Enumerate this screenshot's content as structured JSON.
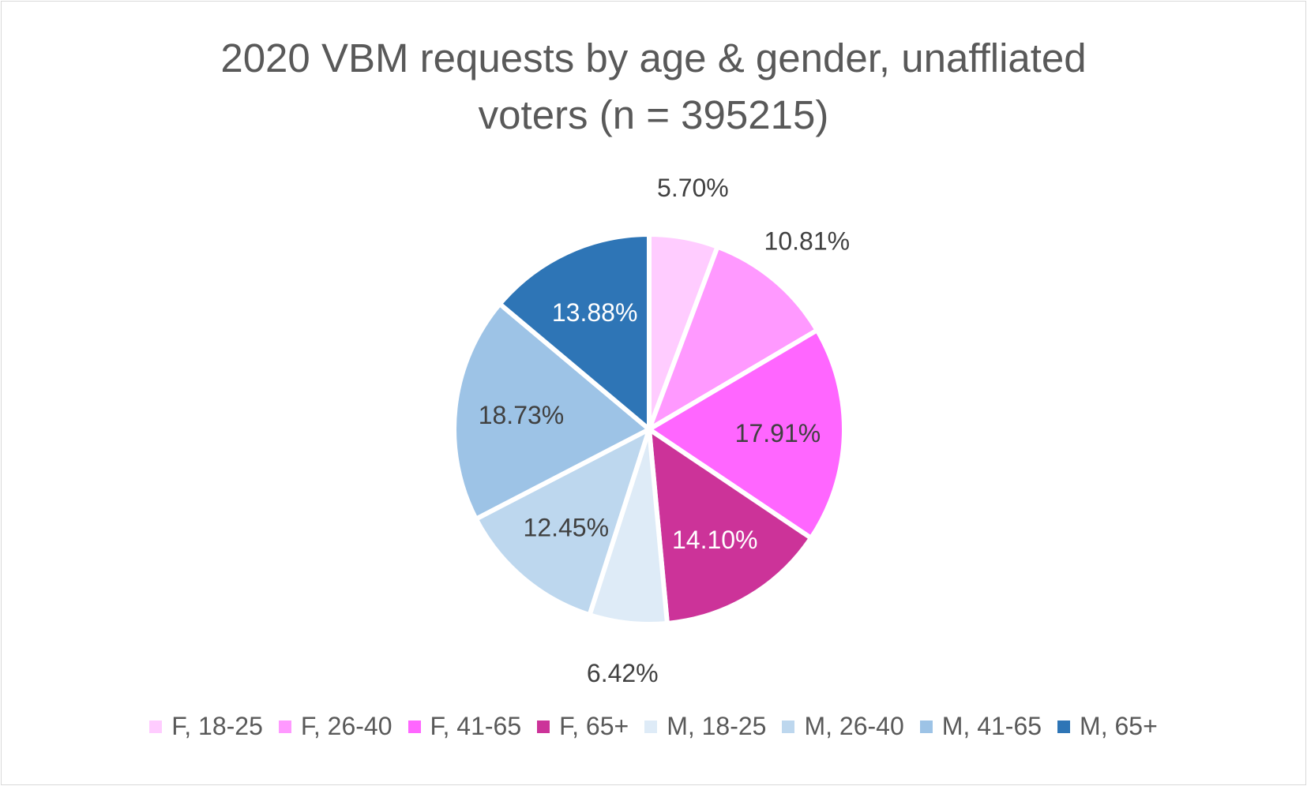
{
  "chart_data": {
    "type": "pie",
    "title_lines": [
      "2020 VBM requests by age & gender, unaffliated",
      "voters (n = 395215)"
    ],
    "slices": [
      {
        "label": "F, 18-25",
        "value": 5.7,
        "display": "5.70%",
        "color": "#ffccff",
        "label_color": "#404040"
      },
      {
        "label": "F, 26-40",
        "value": 10.81,
        "display": "10.81%",
        "color": "#ff99ff",
        "label_color": "#404040"
      },
      {
        "label": "F, 41-65",
        "value": 17.91,
        "display": "17.91%",
        "color": "#ff66ff",
        "label_color": "#404040"
      },
      {
        "label": "F, 65+",
        "value": 14.1,
        "display": "14.10%",
        "color": "#cc3399",
        "label_color": "#ffffff"
      },
      {
        "label": "M, 18-25",
        "value": 6.42,
        "display": "6.42%",
        "color": "#deebf7",
        "label_color": "#404040"
      },
      {
        "label": "M, 26-40",
        "value": 12.45,
        "display": "12.45%",
        "color": "#bdd7ee",
        "label_color": "#404040"
      },
      {
        "label": "M, 41-65",
        "value": 18.73,
        "display": "18.73%",
        "color": "#9dc3e6",
        "label_color": "#404040"
      },
      {
        "label": "M, 65+",
        "value": 13.88,
        "display": "13.88%",
        "color": "#2e75b6",
        "label_color": "#ffffff"
      }
    ],
    "legend_position": "bottom"
  }
}
